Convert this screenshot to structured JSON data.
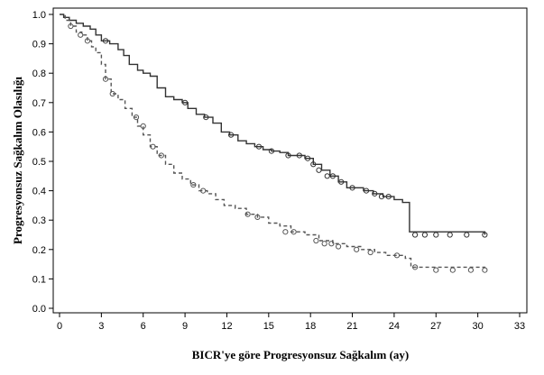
{
  "chart_data": {
    "type": "line",
    "title": "",
    "xlabel": "BICR'ye göre Progresyonsuz Sağkalım (ay)",
    "ylabel": "Progresyonsuz Sağkalım Olasılığı",
    "xlim": [
      0,
      33
    ],
    "ylim": [
      0,
      1.0
    ],
    "xticks": [
      "0",
      "3",
      "6",
      "9",
      "12",
      "15",
      "18",
      "21",
      "24",
      "27",
      "30",
      "33"
    ],
    "yticks": [
      "0.0",
      "0.1",
      "0.2",
      "0.3",
      "0.4",
      "0.5",
      "0.6",
      "0.7",
      "0.8",
      "0.9",
      "1.0"
    ],
    "grid": false,
    "series": [
      {
        "style": "solid",
        "color": "#333333",
        "step_x": [
          0,
          0.3,
          0.7,
          1.2,
          1.7,
          2.2,
          2.6,
          3.0,
          3.6,
          4.2,
          4.6,
          5.0,
          5.6,
          6.0,
          6.5,
          7.0,
          7.6,
          8.2,
          8.8,
          9.2,
          9.8,
          10.4,
          11.0,
          11.6,
          12.2,
          12.8,
          13.4,
          14.0,
          14.6,
          15.2,
          15.8,
          16.4,
          17.0,
          17.6,
          18.2,
          18.8,
          19.4,
          20.0,
          20.6,
          21.2,
          21.8,
          22.5,
          23.2,
          24.0,
          24.6,
          24.9,
          25.1,
          30.5
        ],
        "step_y": [
          1.0,
          0.99,
          0.98,
          0.97,
          0.96,
          0.95,
          0.93,
          0.91,
          0.9,
          0.88,
          0.86,
          0.83,
          0.81,
          0.8,
          0.79,
          0.75,
          0.72,
          0.71,
          0.7,
          0.68,
          0.66,
          0.65,
          0.63,
          0.6,
          0.59,
          0.57,
          0.56,
          0.55,
          0.54,
          0.535,
          0.53,
          0.52,
          0.52,
          0.51,
          0.49,
          0.47,
          0.45,
          0.43,
          0.41,
          0.41,
          0.4,
          0.39,
          0.38,
          0.37,
          0.36,
          0.36,
          0.26,
          0.25
        ],
        "censor_x": [
          3.3,
          9.0,
          10.5,
          12.3,
          14.3,
          15.2,
          16.4,
          17.2,
          17.8,
          18.2,
          18.6,
          19.2,
          19.6,
          20.2,
          21.0,
          22.0,
          22.6,
          23.1,
          23.6,
          25.5,
          26.2,
          27.0,
          28.0,
          29.2,
          30.5
        ],
        "censor_y": [
          0.91,
          0.7,
          0.65,
          0.59,
          0.55,
          0.535,
          0.52,
          0.52,
          0.51,
          0.49,
          0.47,
          0.45,
          0.45,
          0.43,
          0.41,
          0.4,
          0.39,
          0.38,
          0.38,
          0.25,
          0.25,
          0.25,
          0.25,
          0.25,
          0.25
        ]
      },
      {
        "style": "dashed",
        "color": "#555555",
        "step_x": [
          0,
          0.4,
          0.8,
          1.2,
          1.6,
          2.0,
          2.3,
          2.6,
          3.0,
          3.3,
          3.7,
          4.2,
          4.7,
          5.2,
          5.6,
          6.0,
          6.5,
          7.0,
          7.6,
          8.2,
          8.8,
          9.4,
          10.0,
          10.6,
          11.2,
          11.8,
          12.6,
          13.4,
          14.2,
          15.0,
          15.8,
          16.6,
          17.6,
          18.6,
          19.6,
          20.6,
          21.6,
          22.6,
          23.4,
          24.2,
          24.8,
          25.2,
          30.5
        ],
        "step_y": [
          1.0,
          0.98,
          0.96,
          0.94,
          0.93,
          0.91,
          0.89,
          0.87,
          0.83,
          0.78,
          0.73,
          0.71,
          0.68,
          0.65,
          0.62,
          0.59,
          0.55,
          0.52,
          0.49,
          0.46,
          0.44,
          0.42,
          0.4,
          0.39,
          0.37,
          0.35,
          0.34,
          0.32,
          0.31,
          0.29,
          0.28,
          0.26,
          0.25,
          0.23,
          0.22,
          0.21,
          0.2,
          0.19,
          0.18,
          0.18,
          0.17,
          0.14,
          0.13
        ],
        "censor_x": [
          0.8,
          1.5,
          2.0,
          3.3,
          3.8,
          5.5,
          6.0,
          6.7,
          7.3,
          9.6,
          10.3,
          13.5,
          14.2,
          16.2,
          16.8,
          18.4,
          19.0,
          19.5,
          20.0,
          21.3,
          22.3,
          24.2,
          25.5,
          27.0,
          28.2,
          29.5,
          30.5
        ],
        "censor_y": [
          0.96,
          0.93,
          0.91,
          0.78,
          0.73,
          0.65,
          0.62,
          0.55,
          0.52,
          0.42,
          0.4,
          0.32,
          0.31,
          0.26,
          0.26,
          0.23,
          0.22,
          0.22,
          0.21,
          0.2,
          0.19,
          0.18,
          0.14,
          0.13,
          0.13,
          0.13,
          0.13
        ]
      }
    ]
  }
}
